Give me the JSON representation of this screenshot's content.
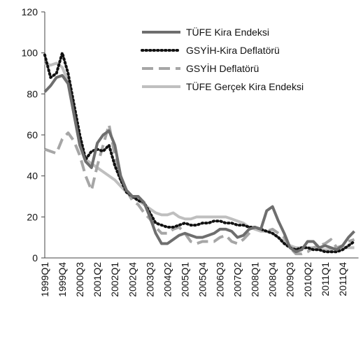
{
  "chart_data": {
    "type": "line",
    "categories": [
      "1999Q1",
      null,
      null,
      "1999Q4",
      null,
      null,
      "2000Q3",
      null,
      null,
      "2001Q2",
      null,
      null,
      "2002Q1",
      null,
      null,
      "2002Q4",
      null,
      null,
      "2003Q3",
      null,
      null,
      "2004Q2",
      null,
      null,
      "2005Q1",
      null,
      null,
      "2005Q4",
      null,
      null,
      "2006Q3",
      null,
      null,
      "2007Q2",
      null,
      null,
      "2008Q1",
      null,
      null,
      "2008Q4",
      null,
      null,
      "2009Q3",
      null,
      null,
      "2010Q2",
      null,
      null,
      "2011Q1",
      null,
      null,
      "2011Q4",
      null,
      null
    ],
    "series": [
      {
        "name": "TÜFE Kira Endeksi",
        "color": "#6e6e6e",
        "dash": "solid",
        "values": [
          81,
          84,
          88,
          89,
          85,
          70,
          55,
          47,
          44,
          56,
          60,
          62,
          55,
          40,
          33,
          30,
          30,
          27,
          20,
          12,
          7,
          7,
          9,
          11,
          12,
          11,
          10,
          10,
          11,
          12,
          14,
          14,
          13,
          10,
          11,
          14,
          15,
          14,
          23,
          25,
          18,
          12,
          5,
          3,
          4,
          8,
          8,
          5,
          6,
          5,
          4,
          6,
          10,
          13
        ]
      },
      {
        "name": "GSYİH-Kira Deflatörü",
        "color": "#111111",
        "dash": "dotted",
        "values": [
          99,
          88,
          90,
          100,
          90,
          75,
          60,
          48,
          52,
          53,
          52,
          55,
          45,
          38,
          32,
          30,
          28,
          27,
          22,
          17,
          16,
          15,
          15,
          16,
          17,
          16,
          16,
          17,
          17,
          18,
          18,
          17,
          17,
          16,
          16,
          15,
          15,
          14,
          13,
          12,
          10,
          7,
          5,
          4,
          5,
          5,
          4,
          4,
          3,
          3,
          3,
          4,
          6,
          8
        ]
      },
      {
        "name": "GSYİH Deflatörü",
        "color": "#a6a6a6",
        "dash": "dashed",
        "values": [
          53,
          52,
          51,
          58,
          61,
          57,
          50,
          40,
          33,
          45,
          55,
          65,
          50,
          38,
          33,
          28,
          26,
          22,
          19,
          15,
          12,
          12,
          14,
          15,
          12,
          8,
          7,
          8,
          8,
          8,
          10,
          11,
          8,
          7,
          9,
          12,
          15,
          14,
          13,
          14,
          12,
          10,
          5,
          2,
          2,
          3,
          5,
          6,
          7,
          9,
          5,
          6,
          8,
          9
        ]
      },
      {
        "name": "TÜFE Gerçek Kira Endeksi",
        "color": "#bfbfbf",
        "dash": "solid",
        "values": [
          95,
          94,
          95,
          93,
          86,
          70,
          55,
          48,
          46,
          44,
          42,
          40,
          38,
          35,
          32,
          30,
          28,
          26,
          24,
          22,
          21,
          21,
          22,
          20,
          19,
          19,
          20,
          20,
          20,
          20,
          20,
          20,
          19,
          18,
          17,
          15,
          14,
          13,
          13,
          12,
          10,
          8,
          6,
          5,
          5,
          5,
          5,
          4,
          4,
          4,
          5,
          5,
          5,
          5
        ]
      }
    ],
    "ylim": [
      0,
      120
    ],
    "yticks": [
      0,
      20,
      40,
      60,
      80,
      100,
      120
    ],
    "grid": false,
    "legend": "top-right"
  }
}
